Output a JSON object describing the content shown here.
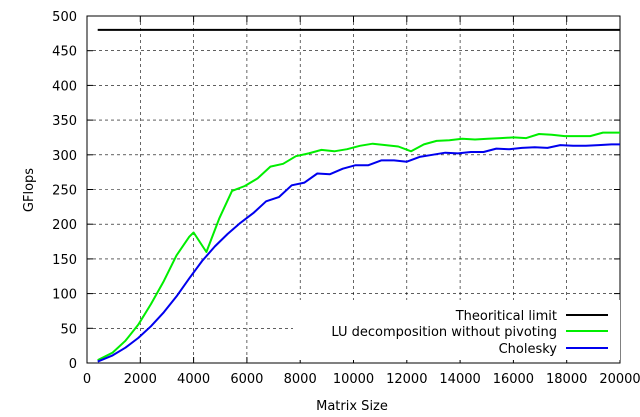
{
  "chart_data": {
    "type": "line",
    "title": "",
    "xlabel": "Matrix Size",
    "ylabel": "GFlops",
    "xlim": [
      0,
      20000
    ],
    "ylim": [
      0,
      500
    ],
    "xticks": [
      0,
      2000,
      4000,
      6000,
      8000,
      10000,
      12000,
      14000,
      16000,
      18000,
      20000
    ],
    "yticks": [
      0,
      50,
      100,
      150,
      200,
      250,
      300,
      350,
      400,
      450,
      500
    ],
    "grid": true,
    "legend_position": "bottom-right",
    "series": [
      {
        "name": "Theoritical limit",
        "color": "#000000",
        "x": [
          400,
          20000
        ],
        "y": [
          480,
          480
        ]
      },
      {
        "name": "LU decomposition without pivoting",
        "color": "#00ee00",
        "x": [
          400,
          960,
          1440,
          1920,
          2400,
          2880,
          3360,
          3840,
          4000,
          4480,
          4960,
          5440,
          5920,
          6400,
          6880,
          7360,
          7840,
          8320,
          8800,
          9280,
          9760,
          10240,
          10720,
          11200,
          11680,
          12160,
          12640,
          13120,
          13600,
          14080,
          14560,
          15040,
          15520,
          16000,
          16480,
          16960,
          17440,
          17920,
          18400,
          18880,
          19360,
          19840,
          20000
        ],
        "y": [
          4,
          15,
          32,
          55,
          85,
          118,
          155,
          182,
          188,
          160,
          208,
          248,
          255,
          266,
          283,
          287,
          298,
          302,
          307,
          305,
          308,
          313,
          316,
          314,
          312,
          305,
          315,
          320,
          321,
          323,
          322,
          323,
          324,
          325,
          324,
          330,
          329,
          327,
          327,
          327,
          332,
          332,
          332
        ]
      },
      {
        "name": "Cholesky",
        "color": "#0000ee",
        "x": [
          400,
          960,
          1440,
          1920,
          2400,
          2880,
          3360,
          3840,
          4320,
          4800,
          5280,
          5760,
          6240,
          6720,
          7200,
          7680,
          8160,
          8640,
          9120,
          9600,
          10080,
          10560,
          11040,
          11520,
          12000,
          12480,
          12960,
          13440,
          13920,
          14400,
          14880,
          15360,
          15840,
          16320,
          16800,
          17280,
          17760,
          18240,
          18720,
          19200,
          19680,
          20000
        ],
        "y": [
          2,
          11,
          22,
          36,
          53,
          73,
          96,
          122,
          147,
          168,
          186,
          202,
          216,
          233,
          239,
          256,
          260,
          273,
          272,
          280,
          285,
          285,
          292,
          292,
          290,
          297,
          300,
          303,
          302,
          304,
          304,
          309,
          308,
          310,
          311,
          310,
          314,
          313,
          313,
          314,
          315,
          315
        ]
      }
    ]
  }
}
